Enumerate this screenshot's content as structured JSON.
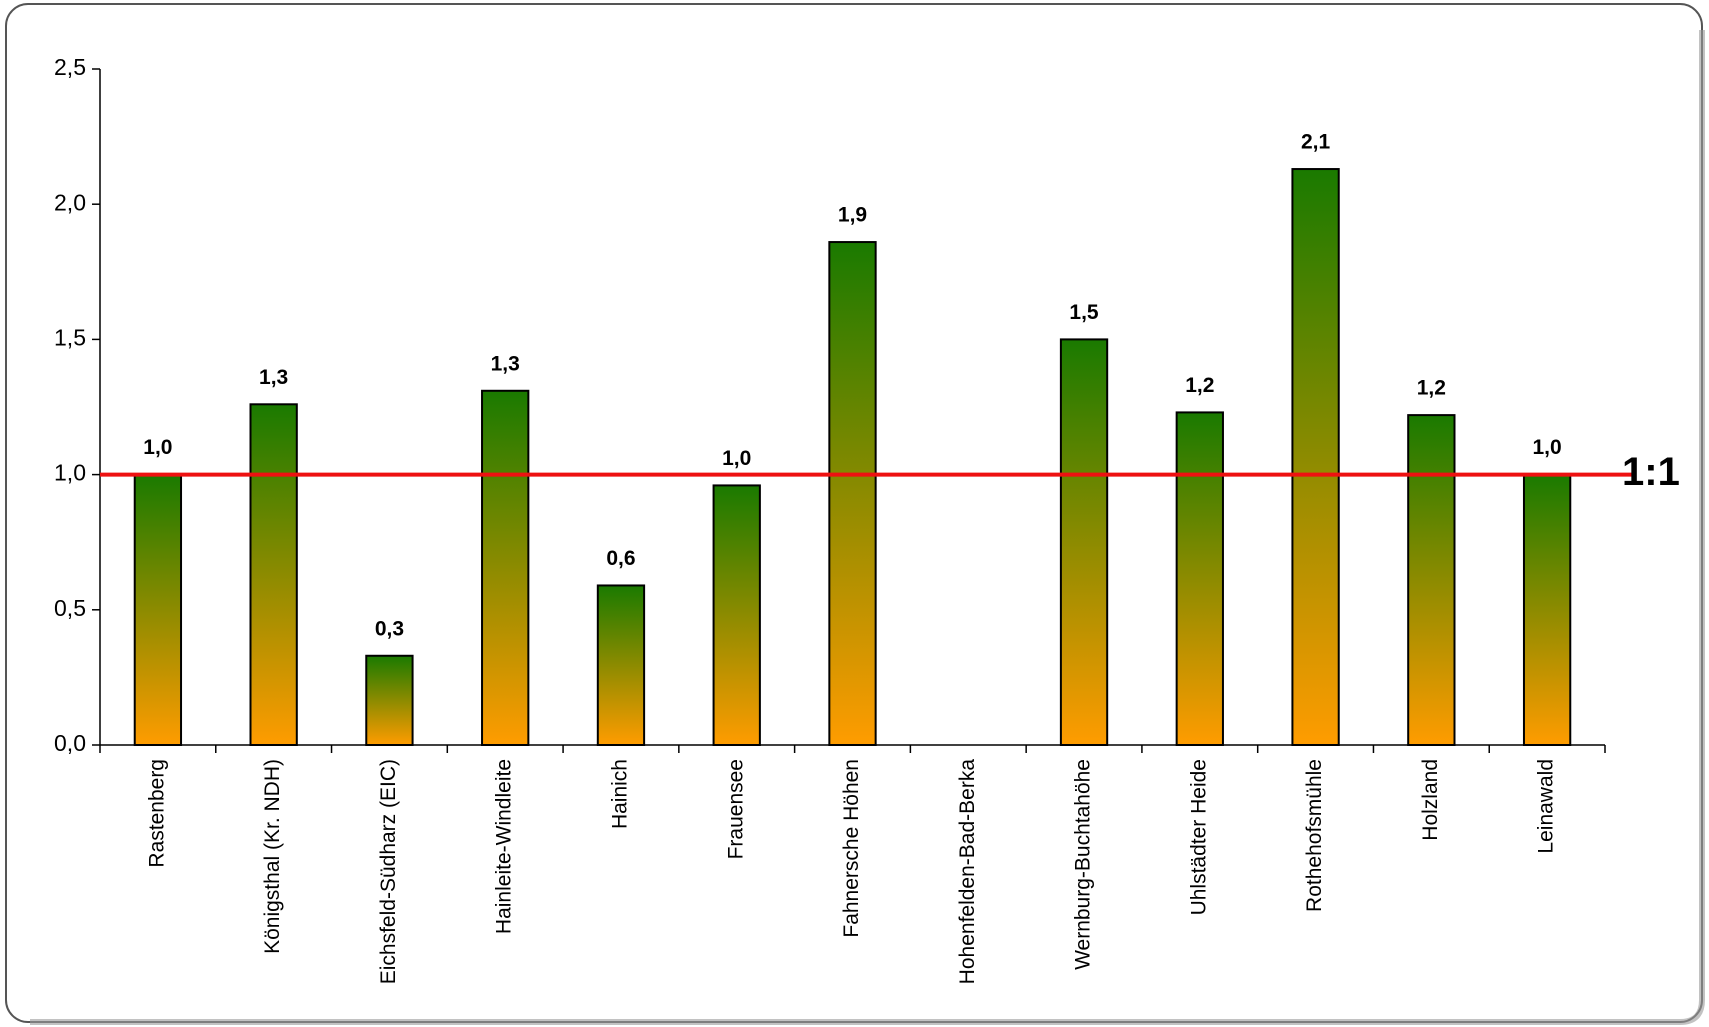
{
  "chart_data": {
    "type": "bar",
    "categories": [
      "Rastenberg",
      "Königsthal (Kr. NDH)",
      "Eichsfeld-Südharz (EIC)",
      "Hainleite-Windleite",
      "Hainich",
      "Frauensee",
      "Fahnersche Höhen",
      "Hohenfelden-Bad-Berka",
      "Wernburg-Buchtahöhe",
      "Uhlstädter Heide",
      "Rothehofsmühle",
      "Holzland",
      "Leinawald"
    ],
    "values": [
      1.0,
      1.26,
      0.33,
      1.31,
      0.59,
      0.96,
      1.86,
      null,
      1.5,
      1.23,
      2.13,
      1.22,
      1.0
    ],
    "value_labels": [
      "1,0",
      "1,3",
      "0,3",
      "1,3",
      "0,6",
      "1,0",
      "1,9",
      null,
      "1,5",
      "1,2",
      "2,1",
      "1,2",
      "1,0"
    ],
    "gradient": {
      "top": "#1a7a00",
      "bottom": "#ff9c00"
    },
    "ylim": [
      0,
      2.5
    ],
    "yticks": [
      {
        "value": 0,
        "label": "0,0"
      },
      {
        "value": 0.5,
        "label": "0,5"
      },
      {
        "value": 1,
        "label": "1,0"
      },
      {
        "value": 1.5,
        "label": "1,5"
      },
      {
        "value": 2,
        "label": "2,0"
      },
      {
        "value": 2.5,
        "label": "2,5"
      }
    ],
    "reference_line": {
      "value": 1,
      "label": "1:1",
      "color": "#ee1111"
    },
    "grid": false
  }
}
